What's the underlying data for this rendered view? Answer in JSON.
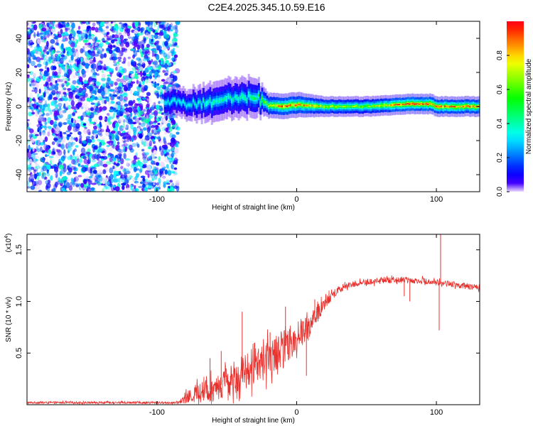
{
  "page": {
    "title": "C2E4.2025.345.10.59.E16"
  },
  "chart_data": [
    {
      "type": "heatmap",
      "name": "spectrogram",
      "xlabel": "Height of straight line (km)",
      "ylabel": "Frequency (Hz)",
      "xlim": [
        -193,
        131
      ],
      "ylim": [
        -50,
        50
      ],
      "xticks": [
        {
          "value": -100,
          "label": "-100"
        },
        {
          "value": 0,
          "label": "0"
        },
        {
          "value": 100,
          "label": "100"
        }
      ],
      "yticks": [
        {
          "value": -40,
          "label": "-40"
        },
        {
          "value": -20,
          "label": "-20"
        },
        {
          "value": 0,
          "label": "0"
        },
        {
          "value": 20,
          "label": "20"
        },
        {
          "value": 40,
          "label": "40"
        }
      ],
      "noise_region_xmax": -85,
      "ridge": [
        {
          "x": -95,
          "freq": 3,
          "width": 3,
          "amp": 0.35
        },
        {
          "x": -80,
          "freq": 1,
          "width": 3,
          "amp": 0.35
        },
        {
          "x": -60,
          "freq": 3,
          "width": 4,
          "amp": 0.4
        },
        {
          "x": -40,
          "freq": 5,
          "width": 4,
          "amp": 0.4
        },
        {
          "x": -30,
          "freq": 6,
          "width": 4,
          "amp": 0.45
        },
        {
          "x": -22,
          "freq": 1,
          "width": 2.5,
          "amp": 0.65
        },
        {
          "x": -10,
          "freq": 0,
          "width": 2.5,
          "amp": 0.9
        },
        {
          "x": 0,
          "freq": 1,
          "width": 2.5,
          "amp": 0.85
        },
        {
          "x": 20,
          "freq": 0,
          "width": 2,
          "amp": 0.7
        },
        {
          "x": 50,
          "freq": 0,
          "width": 2,
          "amp": 0.65
        },
        {
          "x": 80,
          "freq": 1.5,
          "width": 2,
          "amp": 0.95
        },
        {
          "x": 95,
          "freq": 1.5,
          "width": 2,
          "amp": 0.95
        },
        {
          "x": 100,
          "freq": 0,
          "width": 2,
          "amp": 0.9
        },
        {
          "x": 131,
          "freq": 0,
          "width": 2,
          "amp": 0.85
        }
      ],
      "colorbar": {
        "label": "Normalized spectral amplitude",
        "range": [
          0,
          1
        ],
        "ticks": [
          {
            "value": 0.0,
            "label": "0.0"
          },
          {
            "value": 0.2,
            "label": "0.2"
          },
          {
            "value": 0.4,
            "label": "0.4"
          },
          {
            "value": 0.6,
            "label": "0.6"
          },
          {
            "value": 0.8,
            "label": "0.8"
          }
        ]
      }
    },
    {
      "type": "line",
      "name": "snr",
      "xlabel": "Height of straight line (km)",
      "ylabel": "SNR (10 * v/v)",
      "multiplier_label": "(x10",
      "multiplier_exp": "4",
      "multiplier_close": ")",
      "color": "#e8302c",
      "xlim": [
        -193,
        131
      ],
      "ylim": [
        0,
        1.65
      ],
      "xticks": [
        {
          "value": -100,
          "label": "-100"
        },
        {
          "value": 0,
          "label": "0"
        },
        {
          "value": 100,
          "label": "100"
        }
      ],
      "yticks": [
        {
          "value": 0.5,
          "label": "0.5"
        },
        {
          "value": 1.0,
          "label": "1.0"
        },
        {
          "value": 1.5,
          "label": "1.5"
        }
      ],
      "envelope": [
        {
          "x": -193,
          "mean": 0.02,
          "amp": 0.01
        },
        {
          "x": -85,
          "mean": 0.02,
          "amp": 0.01
        },
        {
          "x": -80,
          "mean": 0.06,
          "amp": 0.05
        },
        {
          "x": -70,
          "mean": 0.12,
          "amp": 0.1
        },
        {
          "x": -60,
          "mean": 0.15,
          "amp": 0.12
        },
        {
          "x": -50,
          "mean": 0.22,
          "amp": 0.15
        },
        {
          "x": -40,
          "mean": 0.3,
          "amp": 0.17
        },
        {
          "x": -30,
          "mean": 0.36,
          "amp": 0.18
        },
        {
          "x": -20,
          "mean": 0.45,
          "amp": 0.18
        },
        {
          "x": -10,
          "mean": 0.55,
          "amp": 0.17
        },
        {
          "x": 0,
          "mean": 0.65,
          "amp": 0.15
        },
        {
          "x": 10,
          "mean": 0.78,
          "amp": 0.12
        },
        {
          "x": 20,
          "mean": 0.98,
          "amp": 0.06
        },
        {
          "x": 30,
          "mean": 1.12,
          "amp": 0.04
        },
        {
          "x": 40,
          "mean": 1.17,
          "amp": 0.03
        },
        {
          "x": 60,
          "mean": 1.2,
          "amp": 0.03
        },
        {
          "x": 75,
          "mean": 1.21,
          "amp": 0.03
        },
        {
          "x": 90,
          "mean": 1.2,
          "amp": 0.03
        },
        {
          "x": 110,
          "mean": 1.17,
          "amp": 0.03
        },
        {
          "x": 131,
          "mean": 1.13,
          "amp": 0.03
        }
      ],
      "spikes": [
        {
          "x": -62,
          "y": 0.45
        },
        {
          "x": -54,
          "y": 0.52
        },
        {
          "x": -39,
          "y": 0.9
        },
        {
          "x": -30,
          "y": 0.6
        },
        {
          "x": -19,
          "y": 0.7
        },
        {
          "x": -8,
          "y": 0.95
        },
        {
          "x": 7,
          "y": 0.28
        },
        {
          "x": 13,
          "y": 1.02
        },
        {
          "x": 77,
          "y": 1.05
        },
        {
          "x": 81,
          "y": 1.0
        },
        {
          "x": 103,
          "y": 1.65
        },
        {
          "x": 102,
          "y": 0.72
        }
      ]
    }
  ]
}
